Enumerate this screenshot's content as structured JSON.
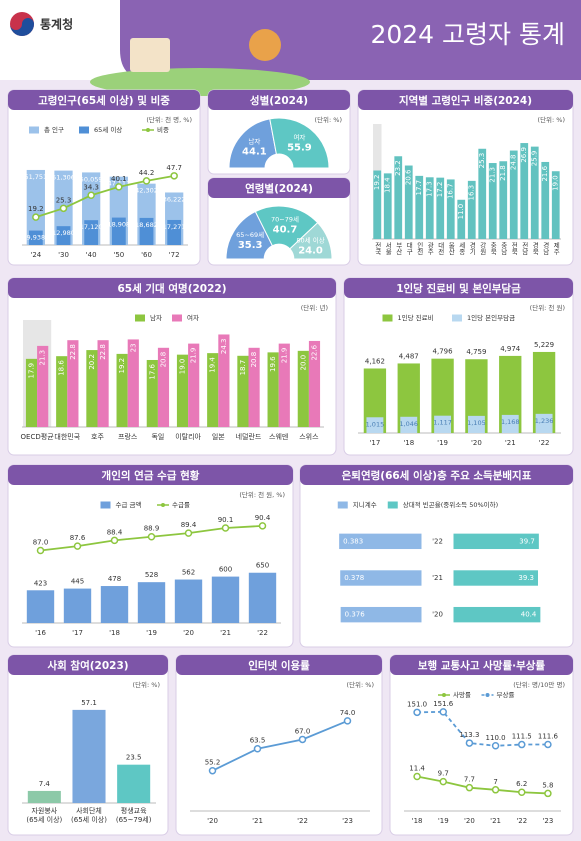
{
  "header": {
    "logo": "통계청",
    "title": "2024 고령자 통계"
  },
  "chart_data": [
    {
      "type": "bar",
      "title": "고령인구(65세 이상) 및 비중",
      "unit": "(단위: 천 명, %)",
      "categories": [
        "'24",
        "'30",
        "'40",
        "'50",
        "'60",
        "'72"
      ],
      "bar_mode": "overlay",
      "series": [
        {
          "name": "총 인구",
          "type": "bar",
          "color": "#9cc2ea",
          "values": [
            51751,
            51306,
            50059,
            47111,
            42302,
            36222
          ],
          "value_labels": [
            "51,751",
            "51,306",
            "50,059",
            "47,111",
            "42,302",
            "36,222"
          ]
        },
        {
          "name": "65세 이상",
          "type": "bar",
          "color": "#4f8fd6",
          "values": [
            9938,
            12980,
            17120,
            18908,
            18682,
            17271
          ],
          "value_labels": [
            "9,938",
            "12,980",
            "17,120",
            "18,908",
            "18,682",
            "17,271"
          ]
        },
        {
          "name": "비중",
          "type": "line",
          "axis": "y2",
          "color": "#8dc63f",
          "values": [
            19.2,
            25.3,
            34.3,
            40.1,
            44.2,
            47.7
          ]
        }
      ],
      "ylim": [
        0,
        60000
      ],
      "y2lim": [
        0,
        60
      ]
    },
    {
      "type": "pie",
      "title": "성별(2024)",
      "unit": "(단위: %)",
      "categories": [
        "남자",
        "여자"
      ],
      "values": [
        44.1,
        55.9
      ],
      "colors": [
        "#6fa0dc",
        "#5ec7c4"
      ]
    },
    {
      "type": "pie",
      "title": "연령별(2024)",
      "categories": [
        "65~69세",
        "70~79세",
        "80세 이상"
      ],
      "values": [
        35.3,
        40.7,
        24.0
      ],
      "value_labels": [
        "35.3",
        "40.7",
        "24.0"
      ],
      "colors": [
        "#6fa0dc",
        "#5ec7c4",
        "#9fd8d6"
      ]
    },
    {
      "type": "bar",
      "title": "지역별 고령인구 비중(2024)",
      "unit": "(단위: %)",
      "categories": [
        "전국",
        "서울",
        "부산",
        "대구",
        "인천",
        "광주",
        "대전",
        "울산",
        "세종",
        "경기",
        "강원",
        "충북",
        "충남",
        "전북",
        "전남",
        "경북",
        "경남",
        "제주"
      ],
      "values": [
        19.2,
        18.4,
        23.2,
        20.6,
        17.7,
        17.3,
        17.2,
        16.7,
        11.0,
        16.3,
        25.3,
        21.3,
        21.8,
        24.8,
        26.9,
        25.9,
        21.6,
        19.0
      ],
      "value_labels": [
        "19.2",
        "18.4",
        "23.2",
        "20.6",
        "17.7",
        "17.3",
        "17.2",
        "16.7",
        "11.0",
        "16.3",
        "25.3",
        "21.3",
        "21.8",
        "24.8",
        "26.9",
        "25.9",
        "21.6",
        "19.0"
      ],
      "color": "#62c2c0",
      "ylim": [
        0,
        30
      ]
    },
    {
      "type": "bar",
      "title": "65세 기대 여명(2022)",
      "unit": "(단위: 년)",
      "categories": [
        "OECD평균",
        "대한민국",
        "호주",
        "프랑스",
        "독일",
        "이탈리아",
        "일본",
        "네덜란드",
        "스웨덴",
        "스위스"
      ],
      "series": [
        {
          "name": "남자",
          "color": "#8dc63f",
          "values": [
            17.9,
            18.6,
            20.2,
            19.2,
            17.6,
            19.0,
            19.4,
            18.7,
            19.6,
            20.0
          ],
          "value_labels": [
            "17.9",
            "18.6",
            "20.2",
            "19.2",
            "17.6",
            "19.0",
            "19.4",
            "18.7",
            "19.6",
            "20.0"
          ]
        },
        {
          "name": "여자",
          "color": "#e879b8",
          "values": [
            21.3,
            22.8,
            22.8,
            23.0,
            20.8,
            21.9,
            24.3,
            20.8,
            21.9,
            22.6
          ]
        }
      ],
      "ylim": [
        0,
        26
      ]
    },
    {
      "type": "bar",
      "title": "1인당 진료비 및 본인부담금",
      "unit": "(단위: 천 원)",
      "categories": [
        "'17",
        "'18",
        "'19",
        "'20",
        "'21",
        "'22"
      ],
      "bar_mode": "overlay",
      "series": [
        {
          "name": "1인당 진료비",
          "color": "#8dc63f",
          "values": [
            4162,
            4487,
            4796,
            4759,
            4974,
            5229
          ],
          "value_labels": [
            "4,162",
            "4,487",
            "4,796",
            "4,759",
            "4,974",
            "5,229"
          ]
        },
        {
          "name": "1인당 본인부담금",
          "color": "#b8d8f0",
          "values": [
            1015,
            1046,
            1117,
            1105,
            1168,
            1236
          ],
          "value_labels": [
            "1,015",
            "1,046",
            "1,117",
            "1,105",
            "1,168",
            "1,236"
          ]
        }
      ],
      "ylim": [
        0,
        6000
      ]
    },
    {
      "type": "bar",
      "title": "개인의 연금 수급 현황",
      "unit": "(단위: 천 원, %)",
      "categories": [
        "'16",
        "'17",
        "'18",
        "'19",
        "'20",
        "'21",
        "'22"
      ],
      "series": [
        {
          "name": "수급 금액",
          "type": "bar",
          "color": "#6fa0dc",
          "values": [
            423,
            445,
            478,
            528,
            562,
            600,
            650
          ]
        },
        {
          "name": "수급률",
          "type": "line",
          "axis": "y2",
          "color": "#8dc63f",
          "values": [
            87.0,
            87.6,
            88.4,
            88.9,
            89.4,
            90.1,
            90.4
          ],
          "value_labels": [
            "87.0",
            "87.6",
            "88.4",
            "88.9",
            "89.4",
            "90.1",
            "90.4"
          ]
        }
      ],
      "ylim": [
        0,
        1500
      ],
      "y2lim": [
        77,
        93
      ]
    },
    {
      "type": "butterfly",
      "title": "은퇴연령(66세 이상)층 주요 소득분배지표",
      "categories": [
        "'22",
        "'21",
        "'20"
      ],
      "series": [
        {
          "name": "지니계수",
          "color": "#8fb8e6",
          "values": [
            0.383,
            0.378,
            0.376
          ]
        },
        {
          "name": "상대적 빈곤율(중위소득 50%이하)",
          "axis": "x2",
          "color": "#5ec7c4",
          "values": [
            39.7,
            39.3,
            40.4
          ]
        }
      ],
      "xlim": [
        0,
        0.5
      ],
      "x2lim": [
        0,
        50
      ]
    },
    {
      "type": "bar",
      "title": "사회 참여(2023)",
      "unit": "(단위: %)",
      "categories": [
        "자원봉사\n(65세 이상)",
        "사회단체\n(65세 이상)",
        "평생교육\n(65~79세)"
      ],
      "values": [
        7.4,
        57.1,
        23.5
      ],
      "colors": [
        "#8cc9a8",
        "#7aa7dd",
        "#5ec7c4"
      ],
      "ylim": [
        0,
        65
      ]
    },
    {
      "type": "line",
      "title": "인터넷 이용률",
      "unit": "(단위: %)",
      "categories": [
        "'20",
        "'21",
        "'22",
        "'23"
      ],
      "values": [
        55.2,
        63.5,
        67.0,
        74.0
      ],
      "value_labels": [
        "55.2",
        "63.5",
        "67.0",
        "74.0"
      ],
      "color": "#5b9bd5",
      "ylim": [
        40,
        80
      ]
    },
    {
      "type": "line",
      "title": "보행 교통사고 사망률·부상률",
      "unit": "(단위: 명/10만 명)",
      "categories": [
        "'18",
        "'19",
        "'20",
        "'21",
        "'22",
        "'23"
      ],
      "series": [
        {
          "name": "사망률",
          "axis": "y2",
          "color": "#8dc63f",
          "values": [
            11.4,
            9.7,
            7.7,
            7.0,
            6.2,
            5.8
          ]
        },
        {
          "name": "부상률",
          "color": "#5b9bd5",
          "dash": true,
          "values": [
            151.0,
            151.6,
            113.3,
            110.0,
            111.5,
            111.6
          ],
          "value_labels": [
            "151.0",
            "151.6",
            "113.3",
            "110.0",
            "111.5",
            "111.6"
          ]
        }
      ],
      "ylim": [
        30,
        160
      ],
      "y2lim": [
        0,
        35
      ]
    }
  ]
}
